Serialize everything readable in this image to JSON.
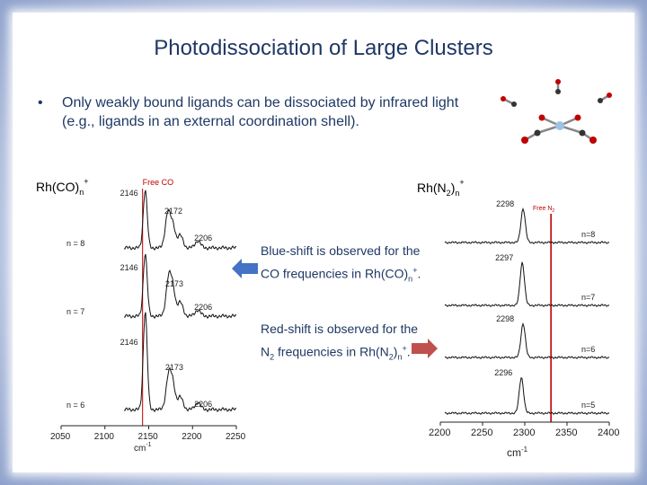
{
  "title": "Photodissociation of Large Clusters",
  "bullet": {
    "marker": "•",
    "text": "Only weakly bound ligands can be dissociated by infrared light (e.g., ligands in an external coordination shell)."
  },
  "notes": {
    "blue": {
      "pre": "Blue-shift is observed for the CO frequencies in Rh(CO)",
      "sub": "n",
      "sup": "+",
      "post": "."
    },
    "red": {
      "pre": "Red-shift is observed for the N",
      "sub1": "2",
      "mid": " frequencies in Rh(N",
      "sub2": "2",
      "mid2": ")",
      "sub3": "n",
      "sup": "+",
      "post": "."
    }
  },
  "arrow_colors": {
    "blue": "#4472c4",
    "red": "#c0504d"
  },
  "chart_data": [
    {
      "type": "line",
      "label_main": "Rh(CO)",
      "label_sub": "n",
      "label_sup": "+",
      "free_label": "Free CO",
      "free_x": 2143,
      "xlim": [
        2050,
        2250
      ],
      "x_ticks": [
        2050,
        2100,
        2150,
        2200,
        2250
      ],
      "xlabel": "cm",
      "xlabel_sup": "-1",
      "series": [
        {
          "name": "n = 8",
          "peaks": [
            {
              "x": 2146,
              "label": "2146"
            },
            {
              "x": 2172,
              "label": "2172"
            },
            {
              "x": 2206,
              "label": "2206"
            }
          ]
        },
        {
          "name": "n = 7",
          "peaks": [
            {
              "x": 2146,
              "label": "2146"
            },
            {
              "x": 2173,
              "label": "2173"
            },
            {
              "x": 2206,
              "label": "2206"
            }
          ]
        },
        {
          "name": "n = 6",
          "peaks": [
            {
              "x": 2146,
              "label": "2146"
            },
            {
              "x": 2173,
              "label": "2173"
            },
            {
              "x": 2206,
              "label": "2206"
            }
          ]
        }
      ]
    },
    {
      "type": "line",
      "label_main": "Rh(N",
      "label_sub": "2",
      "label_close": ")",
      "label_sub2": "n",
      "label_sup": "+",
      "free_label": "Free N",
      "free_label_sub": "2",
      "free_x": 2331,
      "xlim": [
        2200,
        2400
      ],
      "x_ticks": [
        2200,
        2250,
        2300,
        2350,
        2400
      ],
      "xlabel": "cm",
      "xlabel_sup": "-1",
      "series": [
        {
          "name": "n=8",
          "peaks": [
            {
              "x": 2298,
              "label": "2298"
            }
          ]
        },
        {
          "name": "n=7",
          "peaks": [
            {
              "x": 2297,
              "label": "2297"
            }
          ]
        },
        {
          "name": "n=6",
          "peaks": [
            {
              "x": 2298,
              "label": "2298"
            }
          ]
        },
        {
          "name": "n=5",
          "peaks": [
            {
              "x": 2296,
              "label": "2296"
            }
          ]
        }
      ]
    }
  ]
}
